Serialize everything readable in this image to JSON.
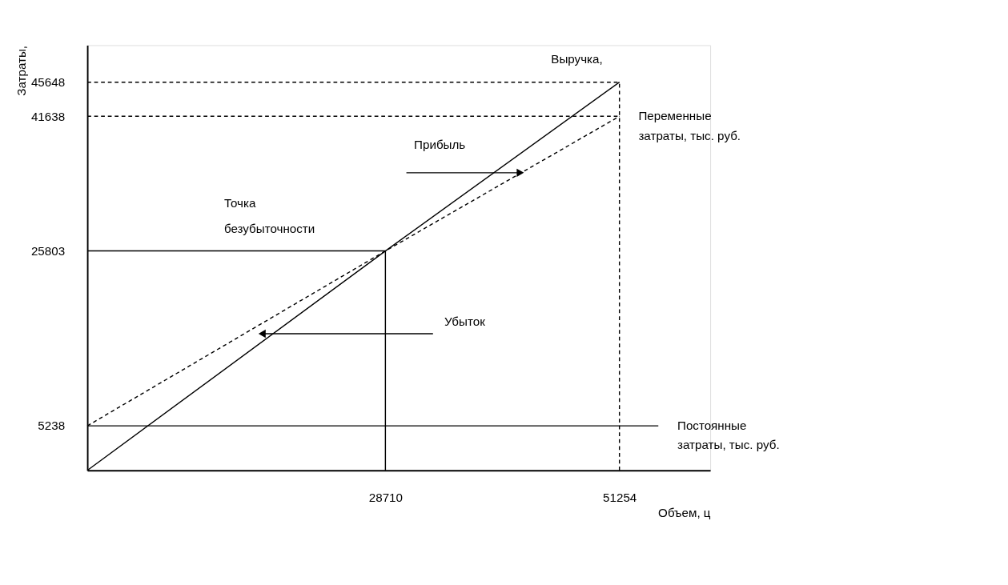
{
  "chart_data": {
    "type": "line",
    "xlabel": "Объем, ц",
    "ylabel": "Затраты,",
    "xlim": [
      0,
      60000
    ],
    "ylim": [
      0,
      50000
    ],
    "xticks": [
      28710,
      51254
    ],
    "yticks": [
      5238,
      25803,
      41638,
      45648
    ],
    "grid": false,
    "series": [
      {
        "name": "Выручка,",
        "color": "#000000",
        "line_style": "solid",
        "x": [
          0,
          28710,
          51254
        ],
        "values": [
          0,
          25803,
          45648
        ]
      },
      {
        "name": "Переменные затраты, тыс. руб.",
        "color": "#000000",
        "line_style": "dashed",
        "x": [
          0,
          28710,
          51254
        ],
        "values": [
          5238,
          25803,
          41638
        ]
      },
      {
        "name": "Постоянные затраты, тыс. руб.",
        "color": "#000000",
        "line_style": "solid",
        "x": [
          0,
          55000
        ],
        "values": [
          5238,
          5238
        ]
      },
      {
        "color": "#000000",
        "line_style": "solid",
        "x": [
          28710,
          28710
        ],
        "values": [
          0,
          25803
        ]
      },
      {
        "color": "#000000",
        "line_style": "solid",
        "x": [
          0,
          28710
        ],
        "values": [
          25803,
          25803
        ]
      },
      {
        "color": "#000000",
        "line_style": "dashed",
        "x": [
          51254,
          51254
        ],
        "values": [
          0,
          45648
        ]
      },
      {
        "color": "#000000",
        "line_style": "dashed",
        "x": [
          0,
          51254
        ],
        "values": [
          45648,
          45648
        ]
      },
      {
        "color": "#000000",
        "line_style": "dashed",
        "x": [
          0,
          51254
        ],
        "values": [
          41638,
          41638
        ]
      }
    ],
    "annotations": [
      "Прибыль",
      "Убыток",
      "Точка безубыточности"
    ]
  }
}
